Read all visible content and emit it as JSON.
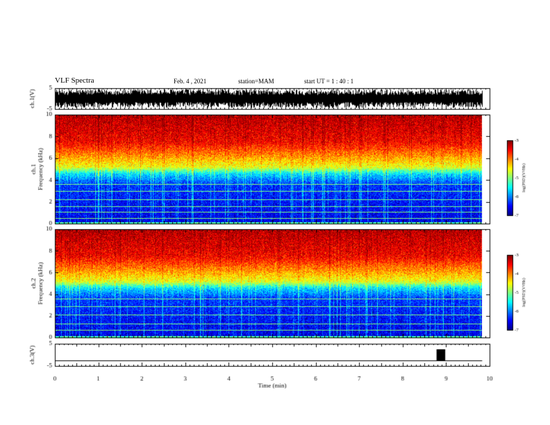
{
  "header": {
    "title": "VLF Spectra",
    "date": "Feb. 4 , 2021",
    "station": "station=MAM",
    "start": "start UT =  1 : 40 : 1"
  },
  "chart_data": [
    {
      "type": "line",
      "panel": "ch1-waveform",
      "ylabel": "ch.1(V)",
      "yticks": [
        "5",
        "-5"
      ],
      "ylim": [
        -5,
        5
      ],
      "x_range_min": [
        0,
        9.83
      ],
      "fill_color": "#000000",
      "description_values": "dense black waveform spanning roughly -4 to +4 V over 0–9.83 min"
    },
    {
      "type": "heatmap",
      "panel": "ch1-spectrogram",
      "ylabel": "ch.1\nFrequency (kHz)",
      "ylabel_line1": "ch.1",
      "ylabel_line2": "Frequency (kHz)",
      "yticks": [
        "0",
        "2",
        "4",
        "6",
        "8",
        "10"
      ],
      "ylim": [
        0,
        10
      ],
      "x_range_min": [
        0,
        9.83
      ],
      "colorbar": {
        "label": "log(PSD)(V²/Hz)",
        "ticks": [
          "-3",
          "-4",
          "-5",
          "-6",
          "-7"
        ],
        "range": [
          -7,
          -3
        ]
      },
      "bands": [
        {
          "freq_khz": [
            0,
            4.5
          ],
          "log_psd": -6.5
        },
        {
          "freq_khz": [
            4.5,
            5.5
          ],
          "log_psd": -5.0
        },
        {
          "freq_khz": [
            5.5,
            7.0
          ],
          "log_psd": -4.2
        },
        {
          "freq_khz": [
            7.0,
            10
          ],
          "log_psd": -3.3
        }
      ],
      "horizontal_lines_khz": [
        0.5,
        1.1,
        1.6,
        2.2,
        3.0,
        3.6
      ]
    },
    {
      "type": "heatmap",
      "panel": "ch2-spectrogram",
      "ylabel": "ch.2\nFrequency (kHz)",
      "ylabel_line1": "ch.2",
      "ylabel_line2": "Frequency (kHz)",
      "yticks": [
        "0",
        "2",
        "4",
        "6",
        "8",
        "10"
      ],
      "ylim": [
        0,
        10
      ],
      "x_range_min": [
        0,
        9.83
      ],
      "colorbar": {
        "label": "log(PSD)(V²/Hz)",
        "ticks": [
          "-3",
          "-4",
          "-5",
          "-6",
          "-7"
        ],
        "range": [
          -7,
          -3
        ]
      },
      "bands": [
        {
          "freq_khz": [
            0,
            4.5
          ],
          "log_psd": -6.5
        },
        {
          "freq_khz": [
            4.5,
            5.5
          ],
          "log_psd": -5.0
        },
        {
          "freq_khz": [
            5.5,
            7.0
          ],
          "log_psd": -4.2
        },
        {
          "freq_khz": [
            7.0,
            10
          ],
          "log_psd": -3.3
        }
      ],
      "horizontal_lines_khz": [
        0.7,
        1.3,
        2.1,
        2.9,
        3.6
      ]
    },
    {
      "type": "line",
      "panel": "ch3-waveform",
      "ylabel": "ch.3(V)",
      "yticks": [
        "5",
        "-5"
      ],
      "ylim": [
        -5,
        5
      ],
      "x_range_min": [
        0,
        9.83
      ],
      "baseline_v": -2.5,
      "pulse": {
        "start_min": 8.78,
        "end_min": 8.98,
        "low_v": -2.5,
        "high_v": 2.5
      }
    }
  ],
  "x_axis": {
    "label": "Time (min)",
    "ticks": [
      "0",
      "1",
      "2",
      "3",
      "4",
      "5",
      "6",
      "7",
      "8",
      "9",
      "10"
    ],
    "range": [
      0,
      10
    ]
  }
}
